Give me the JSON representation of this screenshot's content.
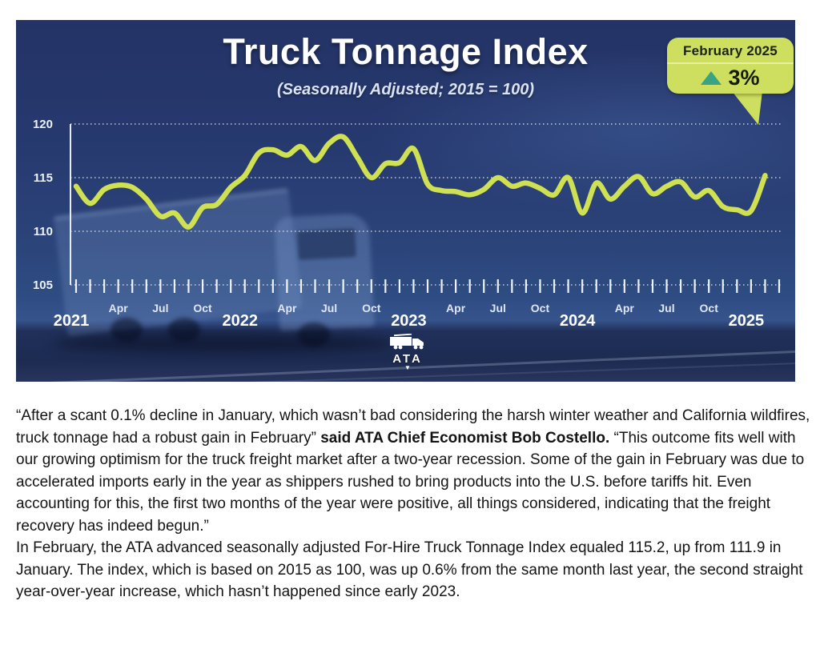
{
  "chart": {
    "title": "Truck Tonnage Index",
    "subtitle": "(Seasonally Adjusted; 2015 = 100)",
    "badge": {
      "period": "February 2025",
      "value": "3%"
    },
    "logo_text": "ATA"
  },
  "chart_data": {
    "type": "line",
    "title": "Truck Tonnage Index",
    "subtitle": "(Seasonally Adjusted; 2015 = 100)",
    "ylim": [
      105,
      120
    ],
    "yticks": [
      120,
      115,
      110,
      105
    ],
    "grid": "dotted-horizontal",
    "legend": "none",
    "line_color": "#cfe052",
    "x_start": "2021-01",
    "frequency": "monthly",
    "x_tick_labels": [
      {
        "m": 0,
        "label": "2021",
        "kind": "year"
      },
      {
        "m": 3,
        "label": "Apr",
        "kind": "month"
      },
      {
        "m": 6,
        "label": "Jul",
        "kind": "month"
      },
      {
        "m": 9,
        "label": "Oct",
        "kind": "month"
      },
      {
        "m": 12,
        "label": "2022",
        "kind": "year"
      },
      {
        "m": 15,
        "label": "Apr",
        "kind": "month"
      },
      {
        "m": 18,
        "label": "Jul",
        "kind": "month"
      },
      {
        "m": 21,
        "label": "Oct",
        "kind": "month"
      },
      {
        "m": 24,
        "label": "2023",
        "kind": "year"
      },
      {
        "m": 27,
        "label": "Apr",
        "kind": "month"
      },
      {
        "m": 30,
        "label": "Jul",
        "kind": "month"
      },
      {
        "m": 33,
        "label": "Oct",
        "kind": "month"
      },
      {
        "m": 36,
        "label": "2024",
        "kind": "year"
      },
      {
        "m": 39,
        "label": "Apr",
        "kind": "month"
      },
      {
        "m": 42,
        "label": "Jul",
        "kind": "month"
      },
      {
        "m": 45,
        "label": "Oct",
        "kind": "month"
      },
      {
        "m": 48,
        "label": "2025",
        "kind": "year"
      }
    ],
    "series": [
      {
        "name": "Truck Tonnage Index",
        "values": [
          114.2,
          112.6,
          113.9,
          114.3,
          114.1,
          113.0,
          111.4,
          111.7,
          110.4,
          112.2,
          112.5,
          114.1,
          115.2,
          117.3,
          117.6,
          117.1,
          117.9,
          116.6,
          118.2,
          118.8,
          116.9,
          115.0,
          116.3,
          116.4,
          117.7,
          114.4,
          113.8,
          113.7,
          113.4,
          113.9,
          115.0,
          114.2,
          114.5,
          114.0,
          113.4,
          115.0,
          111.7,
          114.5,
          113.0,
          114.2,
          115.1,
          113.5,
          114.2,
          114.6,
          113.2,
          113.8,
          112.3,
          112.0,
          111.9,
          115.2
        ]
      }
    ],
    "callout": {
      "label": "February 2025",
      "value": "3%",
      "direction": "up"
    },
    "latest_point": {
      "month": "2025-02",
      "value": 115.2
    }
  },
  "article": {
    "quote_part1": "“After a scant 0.1% decline in January, which wasn’t bad considering the harsh winter weather and California wildfires, truck tonnage had a robust gain in February” ",
    "attribution_bold": "said ATA Chief Economist Bob Costello.",
    "quote_part2": " “This outcome fits well with our growing optimism for the truck freight market after a two-year recession. Some of the gain in February was due to accelerated imports early in the year as shippers rushed to bring products into the U.S. before tariffs hit. Even accounting for this, the first two months of the year were positive, all things considered, indicating that the freight recovery has indeed begun.”",
    "paragraph2": "In February, the ATA advanced seasonally adjusted For-Hire Truck Tonnage Index equaled 115.2, up from 111.9 in January. The index, which is based on 2015 as 100, was up 0.6% from the same month last year, the second straight year-over-year increase, which hasn’t happened since early 2023."
  }
}
